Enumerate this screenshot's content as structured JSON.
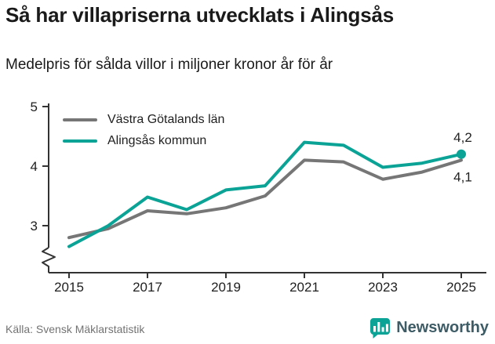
{
  "header": {
    "title": "Så har villapriserna utvecklats i Alingsås",
    "subtitle": "Medelpris för sålda villor i miljoner kronor år för år"
  },
  "chart_data": {
    "type": "line",
    "x": [
      2015,
      2016,
      2017,
      2018,
      2019,
      2020,
      2021,
      2022,
      2023,
      2024,
      2025
    ],
    "series": [
      {
        "name": "Västra Götalands län",
        "color": "#767676",
        "values": [
          2.8,
          2.95,
          3.25,
          3.2,
          3.3,
          3.5,
          4.1,
          4.07,
          3.78,
          3.9,
          4.1
        ],
        "end_label": "4,1",
        "end_label_position": "below",
        "end_marker": false
      },
      {
        "name": "Alingsås kommun",
        "color": "#0aa396",
        "values": [
          2.65,
          3.0,
          3.48,
          3.27,
          3.6,
          3.67,
          4.4,
          4.35,
          3.98,
          4.05,
          4.2
        ],
        "end_label": "4,2",
        "end_label_position": "above",
        "end_marker": true
      }
    ],
    "yticks": [
      3,
      4,
      5
    ],
    "xticks": [
      2015,
      2017,
      2019,
      2021,
      2023,
      2025
    ],
    "ylim": [
      2.5,
      5
    ],
    "axis_break": true,
    "grid": false,
    "legend_position": "top-left",
    "title": "Så har villapriserna utvecklats i Alingsås",
    "subtitle": "Medelpris för sålda villor i miljoner kronor år för år",
    "xlabel": "",
    "ylabel": ""
  },
  "footer": {
    "source": "Källa: Svensk Mäklarstatistik",
    "brand": "Newsworthy"
  },
  "colors": {
    "accent_teal": "#0aa396",
    "line_gray": "#767676",
    "axis": "#333333",
    "text": "#1a1a1a",
    "source_text": "#737373",
    "brand_text": "#3e5c66"
  }
}
